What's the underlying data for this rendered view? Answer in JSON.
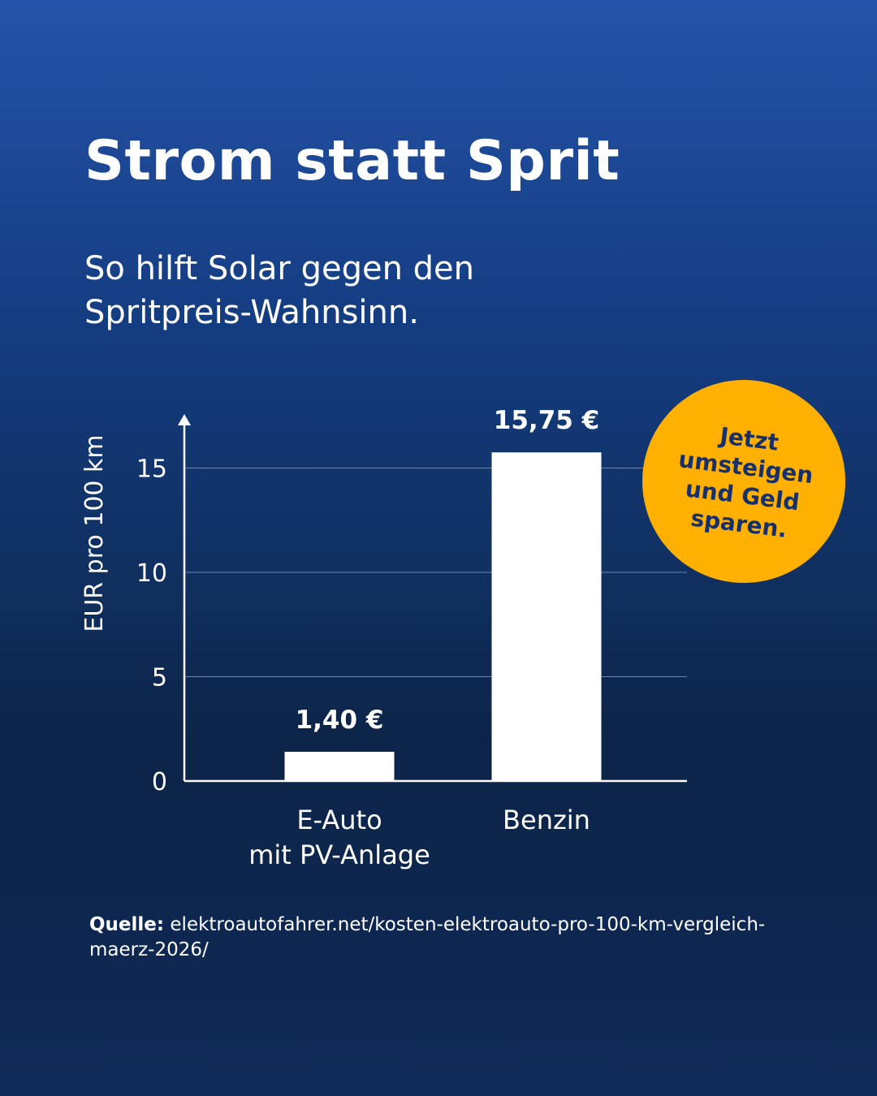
{
  "title": "Strom statt Sprit",
  "subtitle": {
    "line1": "So hilft Solar gegen den",
    "line2": "Spritpreis-Wahnsinn."
  },
  "badge": {
    "lines": [
      "Jetzt",
      "umsteigen",
      "und Geld",
      "sparen."
    ],
    "color": "#ffb000",
    "text_color": "#16306b"
  },
  "source": {
    "label": "Quelle:",
    "text": "elektroautofahrer.net/kosten-elektroauto-pro-100-km-vergleich-maerz-2026/"
  },
  "chart_data": {
    "type": "bar",
    "categories": [
      [
        "E-Auto",
        "mit PV-Anlage"
      ],
      [
        "Benzin"
      ]
    ],
    "values": [
      1.4,
      15.75
    ],
    "value_labels": [
      "1,40 €",
      "15,75 €"
    ],
    "ylabel": "EUR pro 100 km",
    "xlabel": "",
    "ylim": [
      0,
      17
    ],
    "yticks": [
      0,
      5,
      10,
      15
    ],
    "grid": true,
    "bar_color": "#ffffff"
  }
}
